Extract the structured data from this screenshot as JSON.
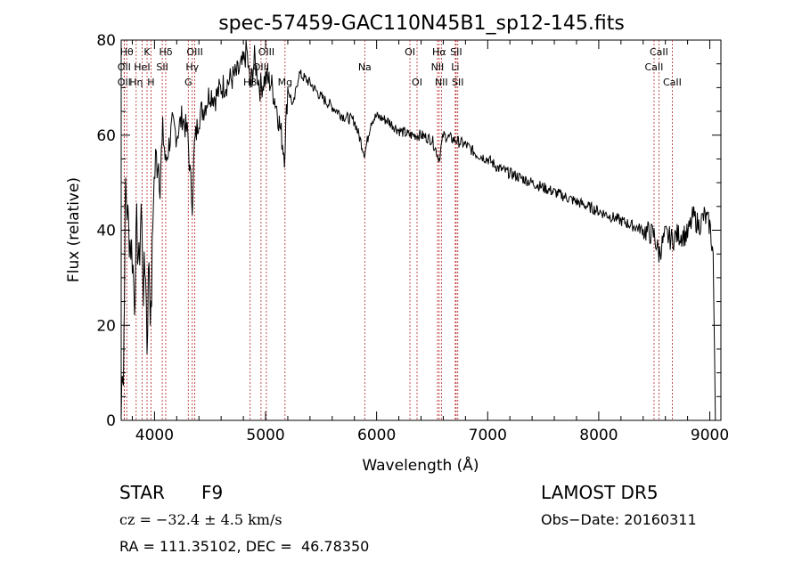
{
  "chart_data": {
    "type": "line",
    "title": "spec-57459-GAC110N45B1_sp12-145.fits",
    "xlabel": "Wavelength (Å)",
    "ylabel": "Flux (relative)",
    "xlim": [
      3700,
      9100
    ],
    "ylim": [
      0,
      80
    ],
    "xticks": [
      4000,
      5000,
      6000,
      7000,
      8000,
      9000
    ],
    "yticks": [
      0,
      20,
      40,
      60,
      80
    ],
    "grid": false,
    "series": [
      {
        "x": [
          3700,
          3710,
          3720,
          3730,
          3740,
          3760,
          3780,
          3800,
          3820,
          3840,
          3860,
          3880,
          3900,
          3920,
          3933,
          3950,
          3968,
          3990,
          4010,
          4030,
          4050,
          4080,
          4101,
          4130,
          4160,
          4200,
          4250,
          4300,
          4320,
          4340,
          4360,
          4400,
          4450,
          4500,
          4550,
          4600,
          4650,
          4700,
          4750,
          4800,
          4830,
          4861,
          4900,
          4950,
          5000,
          5050,
          5100,
          5170,
          5200,
          5250,
          5300,
          5400,
          5500,
          5600,
          5700,
          5800,
          5893,
          5950,
          6000,
          6100,
          6200,
          6300,
          6400,
          6500,
          6563,
          6600,
          6700,
          6800,
          6900,
          7000,
          7100,
          7200,
          7300,
          7400,
          7500,
          7600,
          7700,
          7800,
          7900,
          8000,
          8100,
          8200,
          8300,
          8400,
          8498,
          8542,
          8600,
          8662,
          8700,
          8800,
          8850,
          8900,
          8950,
          9000,
          9030,
          9050,
          9060
        ],
        "values": [
          0,
          14,
          8,
          30,
          50,
          42,
          38,
          35,
          26,
          40,
          32,
          45,
          28,
          33,
          16,
          35,
          20,
          48,
          54,
          56,
          52,
          60,
          54,
          58,
          62,
          60,
          64,
          60,
          52,
          46,
          58,
          64,
          66,
          69,
          68,
          70,
          71,
          72,
          73,
          75,
          78,
          70,
          76,
          70,
          72,
          71,
          66,
          56,
          70,
          66,
          73,
          71,
          68,
          66,
          64,
          63,
          56,
          63,
          64,
          63,
          61,
          60,
          60,
          59,
          55,
          60,
          59,
          58,
          56,
          55,
          53,
          52,
          51,
          50,
          49,
          48,
          47,
          46,
          45,
          44,
          43,
          42,
          41,
          40,
          39,
          35,
          39,
          38,
          39,
          39,
          43,
          41,
          43,
          41,
          35,
          0,
          0
        ]
      }
    ],
    "lines": [
      {
        "name": "Hθ",
        "x": 3750,
        "row": 1
      },
      {
        "name": "OII",
        "x": 3727,
        "row": 2
      },
      {
        "name": "OII",
        "x": 3727,
        "row": 3
      },
      {
        "name": "K",
        "x": 3933,
        "row": 1
      },
      {
        "name": "HeI",
        "x": 3888,
        "row": 2
      },
      {
        "name": "Hη",
        "x": 3835,
        "row": 3
      },
      {
        "name": "Hδ",
        "x": 4101,
        "row": 1
      },
      {
        "name": "SII",
        "x": 4070,
        "row": 2
      },
      {
        "name": "H",
        "x": 3968,
        "row": 3
      },
      {
        "name": "OIII",
        "x": 4363,
        "row": 1
      },
      {
        "name": "Hγ",
        "x": 4340,
        "row": 2
      },
      {
        "name": "G",
        "x": 4304,
        "row": 3
      },
      {
        "name": "OIII",
        "x": 5007,
        "row": 1
      },
      {
        "name": "OIII",
        "x": 4959,
        "row": 2
      },
      {
        "name": "Hβ",
        "x": 4861,
        "row": 3
      },
      {
        "name": "Mg",
        "x": 5175,
        "row": 3
      },
      {
        "name": "Na",
        "x": 5893,
        "row": 2
      },
      {
        "name": "OI",
        "x": 6300,
        "row": 1
      },
      {
        "name": "OI",
        "x": 6364,
        "row": 3
      },
      {
        "name": "Hα",
        "x": 6563,
        "row": 1
      },
      {
        "name": "SII",
        "x": 6716,
        "row": 1
      },
      {
        "name": "NII",
        "x": 6548,
        "row": 2
      },
      {
        "name": "Li",
        "x": 6708,
        "row": 2
      },
      {
        "name": "NII",
        "x": 6583,
        "row": 3
      },
      {
        "name": "SII",
        "x": 6731,
        "row": 3
      },
      {
        "name": "CaII",
        "x": 8542,
        "row": 1
      },
      {
        "name": "CaII",
        "x": 8498,
        "row": 2
      },
      {
        "name": "CaII",
        "x": 8662,
        "row": 3
      }
    ]
  },
  "info": {
    "class": "STAR",
    "subclass": "F9",
    "survey": "LAMOST DR5",
    "cz": "cz = −32.4 ± 4.5 km/s",
    "obs_date": "Obs−Date: 20160311",
    "coords": "RA = 111.35102, DEC =  46.78350"
  }
}
